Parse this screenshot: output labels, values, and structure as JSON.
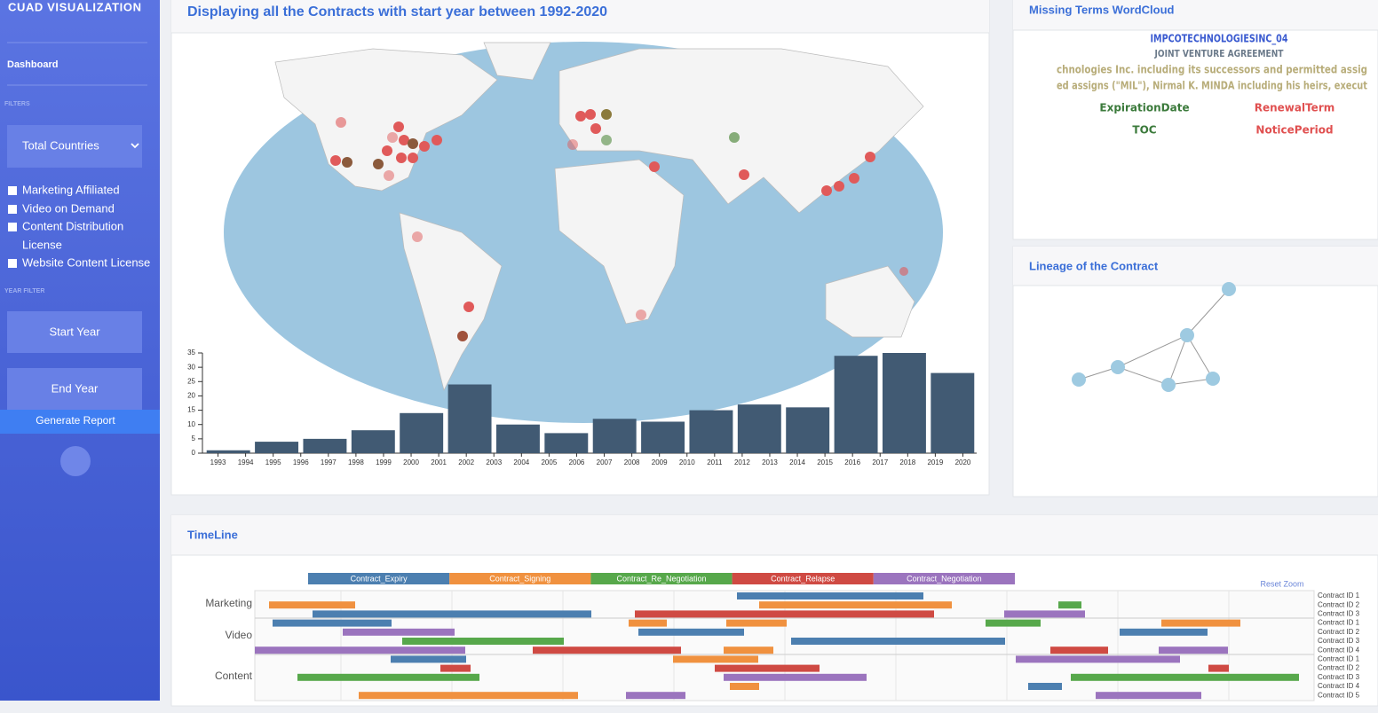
{
  "sidebar": {
    "brand": "CUAD VISUALIZATION",
    "nav": "Dashboard",
    "filters_heading": "FILTERS",
    "country_select": "Total Countries",
    "checkboxes": [
      "Marketing Affiliated",
      "Video on Demand",
      "Content Distribution",
      "License",
      "Website Content License"
    ],
    "year_heading": "YEAR FILTER",
    "start_year": "Start Year",
    "end_year": "End Year",
    "report": "Generate Report"
  },
  "map_panel": {
    "title": "Displaying all the Contracts with start year between 1992-2020"
  },
  "chart_data": {
    "type": "bar",
    "categories": [
      null,
      null,
      null,
      null,
      null,
      null,
      null,
      null,
      null,
      null,
      null,
      null,
      null,
      null,
      null,
      null
    ],
    "values": [
      1,
      4,
      5,
      8,
      14,
      24,
      10,
      7,
      12,
      11,
      15,
      17,
      16,
      34,
      35,
      28
    ],
    "color": "#415a73",
    "ylim": [
      0,
      35
    ],
    "yticks": [
      0,
      5,
      10,
      15,
      20,
      25,
      30,
      35
    ],
    "xlim": [
      1992.5,
      2020.5
    ],
    "xticks": [
      1993,
      1994,
      1995,
      1996,
      1997,
      1998,
      1999,
      2000,
      2001,
      2002,
      2003,
      2004,
      2005,
      2006,
      2007,
      2008,
      2009,
      2010,
      2011,
      2012,
      2013,
      2014,
      2015,
      2016,
      2017,
      2018,
      2019,
      2020
    ]
  },
  "wordcloud": {
    "title": "Missing Terms WordCloud",
    "words": [
      {
        "text": "IMPCOTECHNOLOGIESINC_04",
        "color": "#3b5bd0"
      },
      {
        "text": "JOINT VENTURE AGREEMENT",
        "color": "#6b7a8a"
      },
      {
        "text": "chnologies Inc. including its successors and permitted assig",
        "color": "#b8ad7a"
      },
      {
        "text": "ed assigns (\"MIL\"), Nirmal K. MINDA including his heirs, execut",
        "color": "#b8ad7a"
      },
      {
        "text": "ExpirationDate",
        "color": "#3b7a3b"
      },
      {
        "text": "RenewalTerm",
        "color": "#e05050"
      },
      {
        "text": "TOC",
        "color": "#3b7a3b"
      },
      {
        "text": "NoticePeriod",
        "color": "#e05050"
      }
    ]
  },
  "lineage": {
    "title": "Lineage of the Contract"
  },
  "timeline": {
    "title": "TimeLine",
    "reset": "Reset Zoom",
    "legend": [
      {
        "name": "Contract_Expiry",
        "color": "#4c7fb0"
      },
      {
        "name": "Contract_Signing",
        "color": "#f0913f"
      },
      {
        "name": "Contract_Re_Negotiation",
        "color": "#57a84b"
      },
      {
        "name": "Contract_Relapse",
        "color": "#cf4a43"
      },
      {
        "name": "Contract_Negotiation",
        "color": "#9b74be"
      }
    ],
    "groups": [
      "Marketing",
      "Video",
      "Content"
    ],
    "rows": [
      "Contract ID 1",
      "Contract ID 2",
      "Contract ID 3",
      "Contract ID 1",
      "Contract ID 2",
      "Contract ID 3",
      "Contract ID 4",
      "Contract ID 1",
      "Contract ID 2",
      "Contract ID 3",
      "Contract ID 4",
      "Contract ID 5"
    ]
  }
}
